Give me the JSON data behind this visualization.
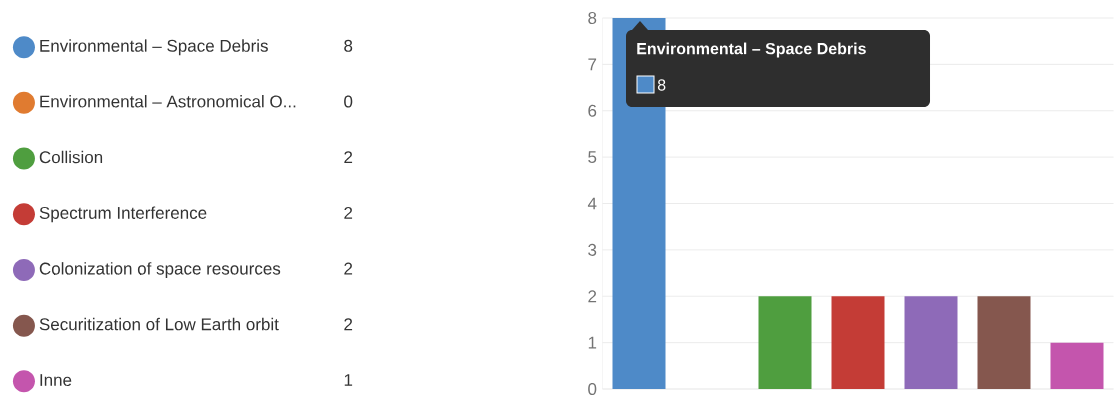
{
  "chart_data": {
    "type": "bar",
    "categories": [
      null,
      null,
      null,
      null,
      null,
      null,
      null
    ],
    "series": [
      {
        "name": "Environmental – Space Debris",
        "color": "#4e8ac8",
        "values": [
          8,
          null,
          null,
          null,
          null,
          null,
          null
        ]
      },
      {
        "name": "Environmental – Astronomical O...",
        "color": "#e07b30",
        "values": [
          null,
          0,
          null,
          null,
          null,
          null,
          null
        ]
      },
      {
        "name": "Collision",
        "color": "#4f9e3f",
        "values": [
          null,
          null,
          2,
          null,
          null,
          null,
          null
        ]
      },
      {
        "name": "Spectrum Interference",
        "color": "#c43c36",
        "values": [
          null,
          null,
          null,
          2,
          null,
          null,
          null
        ]
      },
      {
        "name": "Colonization of space resources",
        "color": "#8e6ab8",
        "values": [
          null,
          null,
          null,
          null,
          2,
          null,
          null
        ]
      },
      {
        "name": "Securitization of Low Earth orbit",
        "color": "#85574e",
        "values": [
          null,
          null,
          null,
          null,
          null,
          2,
          null
        ]
      },
      {
        "name": "Inne",
        "color": "#c455ad",
        "values": [
          null,
          null,
          null,
          null,
          null,
          null,
          1
        ]
      }
    ],
    "ylim": [
      0,
      8
    ],
    "yticks": [
      0,
      1,
      2,
      3,
      4,
      5,
      6,
      7,
      8
    ],
    "grid": "y",
    "legend": "left",
    "tick_labels": "y",
    "annotations": [
      "Environmental – Space Debris",
      "8",
      "8",
      "0",
      "2",
      "2",
      "2",
      "2",
      "1"
    ]
  }
}
